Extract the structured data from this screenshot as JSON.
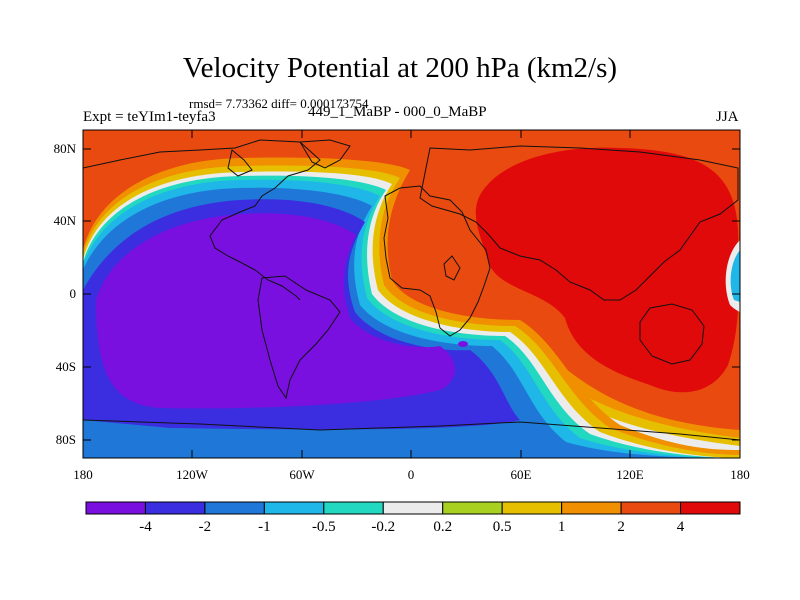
{
  "title": "Velocity Potential at 200 hPa (km2/s)",
  "stats": "rmsd= 7.73362 diff= 0.000173754",
  "left_label": "Expt = teYIm1-teyfa3",
  "center_label": "449_1_MaBP - 000_0_MaBP",
  "right_label": "JJA",
  "lat_ticks": [
    "80N",
    "40N",
    "0",
    "40S",
    "80S"
  ],
  "lon_ticks": [
    "180",
    "120W",
    "60W",
    "0",
    "60E",
    "120E",
    "180"
  ],
  "colorbar": {
    "labels": [
      "-4",
      "-2",
      "-1",
      "-0.5",
      "-0.2",
      "0.2",
      "0.5",
      "1",
      "2",
      "4"
    ],
    "colors": [
      "#7a10e0",
      "#3a2ee0",
      "#1f78d8",
      "#1fb6e8",
      "#22d8c0",
      "#ececec",
      "#a8d020",
      "#e6c000",
      "#f09000",
      "#e84a10",
      "#e00a0a"
    ]
  },
  "colors": {
    "neg_strong": "#7a10e0",
    "neg": "#3a2ee0",
    "neg_mid": "#1f78d8",
    "neg_weak": "#1fb6e8",
    "near_zero_neg": "#22d8c0",
    "zero": "#ececec",
    "pos_weak": "#e6c000",
    "pos_mid": "#f09000",
    "pos": "#e84a10",
    "pos_strong": "#e00a0a"
  }
}
